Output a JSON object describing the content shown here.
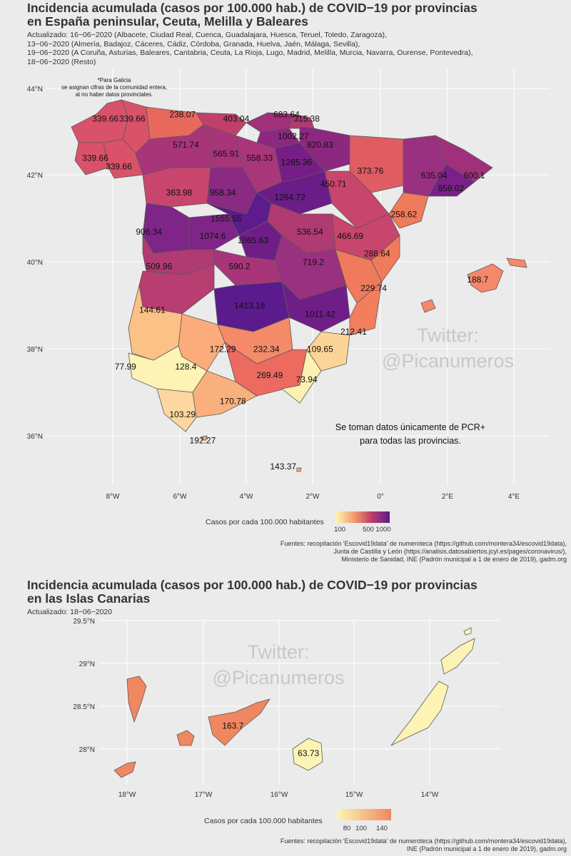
{
  "top": {
    "title": "Incidencia acumulada (casos por 100.000 hab.) de COVID−19 por provincias\nen España peninsular, Ceuta, Melilla y Baleares",
    "subtitle": "Actualizado: 16−06−2020 (Albacete, Ciudad Real, Cuenca, Guadalajara, Huesca, Teruel, Toledo, Zaragoza),\n13−06−2020 (Almería, Badajoz, Cáceres, Cádiz, Córdoba, Granada, Huelva, Jaén, Málaga, Sevilla),\n19−06−2020 (A Coruña, Asturias, Baleares, Cantabria, Ceuta, La Rioja, Lugo, Madrid, Melilla, Murcia, Navarra, Ourense, Pontevedra),\n18−06−2020 (Resto)",
    "galicia_note": "*Para Galicia\nse asignan cifras de la comunidad entera,\nal no haber datos provinciales.",
    "pcr_note": "Se toman datos únicamente de PCR+\npara todas las provincias.",
    "watermark": "Twitter:\n@Picanumeros",
    "x_ticks": [
      "8°W",
      "6°W",
      "4°W",
      "2°W",
      "0°",
      "2°E",
      "4°E"
    ],
    "y_ticks": [
      "44°N",
      "42°N",
      "40°N",
      "38°N",
      "36°N"
    ],
    "legend_title": "Casos por cada 100.000 habitantes",
    "legend_ticks": [
      "100",
      "500",
      "1000"
    ],
    "caption": "Fuentes: recopilación 'Escovid19data' de numeroteca (https://github.com/montera34/escovid19data),\nJunta de Castilla y León (https://analisis.datosabiertos.jcyl.es/pages/coronavirus/),\nMinisterio de Sanidad, INE (Padrón municipal a 1 de enero de 2019), gadm.org"
  },
  "bottom": {
    "title": "Incidencia acumulada (casos por 100.000 hab.) de COVID−19 por provincias\nen las Islas Canarias",
    "subtitle": "Actualizado: 18−06−2020",
    "watermark": "Twitter:\n@Picanumeros",
    "x_ticks": [
      "18°W",
      "17°W",
      "16°W",
      "15°W",
      "14°W"
    ],
    "y_ticks": [
      "29.5°N",
      "29°N",
      "28.5°N",
      "28°N"
    ],
    "legend_title": "Casos por cada 100.000 habitantes",
    "legend_ticks": [
      "80",
      "100",
      "140"
    ],
    "caption": "Fuentes: recopilación 'Escovid19data' de numeroteca (https://github.com/montera34/escovid19data),\nINE (Padrón municipal a 1 de enero de 2019), gadm.org"
  },
  "colors": {
    "background": "#ebebeb",
    "grid": "#ffffff",
    "border": "#5a5a5a",
    "scale_low": "#fcf7b6",
    "scale_mid": "#f08760",
    "scale_high": "#5b1b8c"
  },
  "chart_data": [
    {
      "type": "choropleth",
      "region": "España peninsular, Ceuta, Melilla y Baleares",
      "scale": "log",
      "labels": [
        {
          "value": "339.66",
          "lon": -8.2,
          "lat": 43.3
        },
        {
          "value": "339.66",
          "lon": -7.4,
          "lat": 43.3
        },
        {
          "value": "238.07",
          "lon": -5.9,
          "lat": 43.4
        },
        {
          "value": "403.04",
          "lon": -4.3,
          "lat": 43.3
        },
        {
          "value": "683.64",
          "lon": -2.8,
          "lat": 43.4
        },
        {
          "value": "315.38",
          "lon": -2.2,
          "lat": 43.3
        },
        {
          "value": "1002.27",
          "lon": -2.6,
          "lat": 42.9
        },
        {
          "value": "820.83",
          "lon": -1.8,
          "lat": 42.7
        },
        {
          "value": "571.74",
          "lon": -5.8,
          "lat": 42.7
        },
        {
          "value": "565.91",
          "lon": -4.6,
          "lat": 42.5
        },
        {
          "value": "558.33",
          "lon": -3.6,
          "lat": 42.4
        },
        {
          "value": "1285.36",
          "lon": -2.5,
          "lat": 42.3
        },
        {
          "value": "339.66",
          "lon": -8.5,
          "lat": 42.4
        },
        {
          "value": "339.66",
          "lon": -7.8,
          "lat": 42.2
        },
        {
          "value": "373.76",
          "lon": -0.3,
          "lat": 42.1
        },
        {
          "value": "635.04",
          "lon": 1.6,
          "lat": 42.0
        },
        {
          "value": "600.1",
          "lon": 2.8,
          "lat": 42.0
        },
        {
          "value": "450.71",
          "lon": -1.4,
          "lat": 41.8
        },
        {
          "value": "859.02",
          "lon": 2.1,
          "lat": 41.7
        },
        {
          "value": "363.98",
          "lon": -6.0,
          "lat": 41.6
        },
        {
          "value": "958.34",
          "lon": -4.7,
          "lat": 41.6
        },
        {
          "value": "1264.72",
          "lon": -2.7,
          "lat": 41.5
        },
        {
          "value": "258.62",
          "lon": 0.7,
          "lat": 41.1
        },
        {
          "value": "1555.55",
          "lon": -4.6,
          "lat": 41.0
        },
        {
          "value": "906.34",
          "lon": -6.9,
          "lat": 40.7
        },
        {
          "value": "1074.6",
          "lon": -5.0,
          "lat": 40.6
        },
        {
          "value": "1065.63",
          "lon": -3.8,
          "lat": 40.5
        },
        {
          "value": "536.54",
          "lon": -2.1,
          "lat": 40.7
        },
        {
          "value": "466.69",
          "lon": -0.9,
          "lat": 40.6
        },
        {
          "value": "288.64",
          "lon": -0.1,
          "lat": 40.2
        },
        {
          "value": "509.96",
          "lon": -6.6,
          "lat": 39.9
        },
        {
          "value": "590.2",
          "lon": -4.2,
          "lat": 39.9
        },
        {
          "value": "719.2",
          "lon": -2.0,
          "lat": 40.0
        },
        {
          "value": "188.7",
          "lon": 2.9,
          "lat": 39.6
        },
        {
          "value": "229.74",
          "lon": -0.2,
          "lat": 39.4
        },
        {
          "value": "144.61",
          "lon": -6.8,
          "lat": 38.9
        },
        {
          "value": "1413.18",
          "lon": -3.9,
          "lat": 39.0
        },
        {
          "value": "1011.42",
          "lon": -1.8,
          "lat": 38.8
        },
        {
          "value": "212.41",
          "lon": -0.8,
          "lat": 38.4
        },
        {
          "value": "172.29",
          "lon": -4.7,
          "lat": 38.0
        },
        {
          "value": "232.34",
          "lon": -3.4,
          "lat": 38.0
        },
        {
          "value": "109.65",
          "lon": -1.8,
          "lat": 38.0
        },
        {
          "value": "77.99",
          "lon": -7.6,
          "lat": 37.6
        },
        {
          "value": "128.4",
          "lon": -5.8,
          "lat": 37.6
        },
        {
          "value": "269.49",
          "lon": -3.3,
          "lat": 37.4
        },
        {
          "value": "73.94",
          "lon": -2.2,
          "lat": 37.3
        },
        {
          "value": "170.78",
          "lon": -4.4,
          "lat": 36.8
        },
        {
          "value": "103.29",
          "lon": -5.9,
          "lat": 36.5
        },
        {
          "value": "192.27",
          "lon": -5.3,
          "lat": 35.9
        },
        {
          "value": "143.37",
          "lon": -2.9,
          "lat": 35.3
        }
      ],
      "x_range": [
        -9.5,
        4.8
      ],
      "y_range": [
        34.9,
        44.2
      ],
      "legend_position": "bottom",
      "grid": true
    },
    {
      "type": "choropleth",
      "region": "Islas Canarias",
      "scale": "log",
      "labels": [
        {
          "value": "163.7",
          "lon": -16.6,
          "lat": 28.27
        },
        {
          "value": "63.73",
          "lon": -15.6,
          "lat": 27.95
        }
      ],
      "x_range": [
        -18.4,
        -13.3
      ],
      "y_range": [
        27.6,
        29.5
      ],
      "legend_position": "bottom",
      "grid": true
    }
  ]
}
